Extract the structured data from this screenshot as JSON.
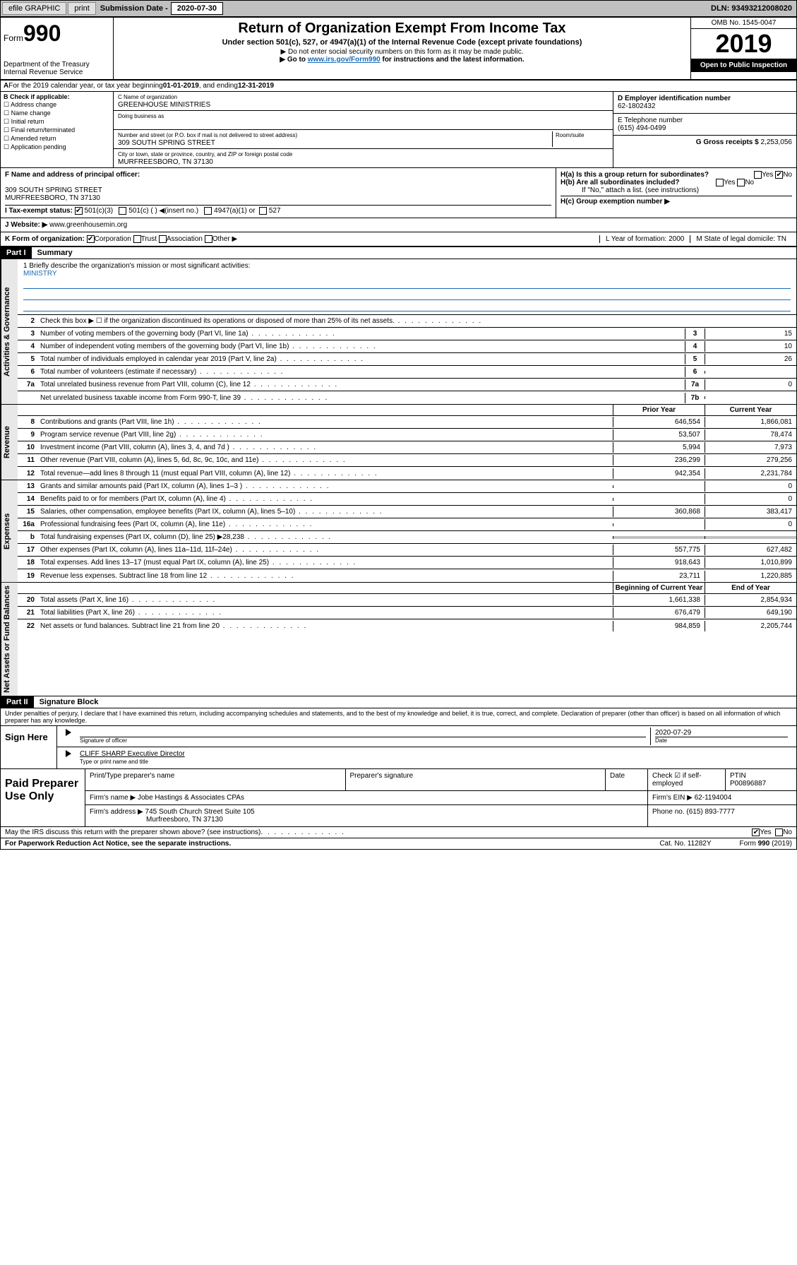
{
  "topbar": {
    "efile": "efile GRAPHIC",
    "print": "print",
    "subm_lbl": "Submission Date - ",
    "subm_date": "2020-07-30",
    "dln": "DLN: 93493212008020"
  },
  "header": {
    "form": "Form",
    "num": "990",
    "dept": "Department of the Treasury",
    "irs": "Internal Revenue Service",
    "title": "Return of Organization Exempt From Income Tax",
    "sub1": "Under section 501(c), 527, or 4947(a)(1) of the Internal Revenue Code (except private foundations)",
    "sub2": "▶ Do not enter social security numbers on this form as it may be made public.",
    "sub3": "▶ Go to www.irs.gov/Form990 for instructions and the latest information.",
    "omb": "OMB No. 1545-0047",
    "year": "2019",
    "public": "Open to Public Inspection"
  },
  "a": {
    "text": "For the 2019 calendar year, or tax year beginning ",
    "begin": "01-01-2019",
    "mid": " , and ending ",
    "end": "12-31-2019"
  },
  "b": {
    "lbl": "B Check if applicable:",
    "opts": [
      "Address change",
      "Name change",
      "Initial return",
      "Final return/terminated",
      "Amended return",
      "Application pending"
    ]
  },
  "c": {
    "name_lbl": "C Name of organization",
    "name": "GREENHOUSE MINISTRIES",
    "dba": "Doing business as",
    "addr_lbl": "Number and street (or P.O. box if mail is not delivered to street address)",
    "room": "Room/suite",
    "addr": "309 SOUTH SPRING STREET",
    "city_lbl": "City or town, state or province, country, and ZIP or foreign postal code",
    "city": "MURFREESBORO, TN  37130"
  },
  "d": {
    "lbl": "D Employer identification number",
    "val": "62-1802432"
  },
  "e": {
    "lbl": "E Telephone number",
    "val": "(615) 494-0499"
  },
  "g": {
    "lbl": "G Gross receipts $ ",
    "val": "2,253,056"
  },
  "f": {
    "lbl": "F Name and address of principal officer:",
    "addr1": "309 SOUTH SPRING STREET",
    "addr2": "MURFREESBORO, TN  37130"
  },
  "h": {
    "a": "H(a)  Is this a group return for subordinates?",
    "b": "H(b)  Are all subordinates included?",
    "note": "If \"No,\" attach a list. (see instructions)",
    "c": "H(c)  Group exemption number ▶"
  },
  "i": {
    "lbl": "I  Tax-exempt status:",
    "o1": "501(c)(3)",
    "o2": "501(c) (   ) ◀(insert no.)",
    "o3": "4947(a)(1) or",
    "o4": "527"
  },
  "j": {
    "lbl": "J  Website: ▶",
    "val": "www.greenhousemin.org"
  },
  "k": {
    "lbl": "K Form of organization:",
    "o1": "Corporation",
    "o2": "Trust",
    "o3": "Association",
    "o4": "Other ▶",
    "l": "L Year of formation: 2000",
    "m": "M State of legal domicile: TN"
  },
  "part1": {
    "hdr": "Part I",
    "title": "Summary"
  },
  "mission": {
    "lbl": "1  Briefly describe the organization's mission or most significant activities:",
    "val": "MINISTRY"
  },
  "gov_lines": [
    {
      "n": "2",
      "t": "Check this box ▶ ☐  if the organization discontinued its operations or disposed of more than 25% of its net assets."
    },
    {
      "n": "3",
      "t": "Number of voting members of the governing body (Part VI, line 1a)",
      "box": "3",
      "v": "15"
    },
    {
      "n": "4",
      "t": "Number of independent voting members of the governing body (Part VI, line 1b)",
      "box": "4",
      "v": "10"
    },
    {
      "n": "5",
      "t": "Total number of individuals employed in calendar year 2019 (Part V, line 2a)",
      "box": "5",
      "v": "26"
    },
    {
      "n": "6",
      "t": "Total number of volunteers (estimate if necessary)",
      "box": "6",
      "v": ""
    },
    {
      "n": "7a",
      "t": "Total unrelated business revenue from Part VIII, column (C), line 12",
      "box": "7a",
      "v": "0"
    },
    {
      "n": "",
      "t": "Net unrelated business taxable income from Form 990-T, line 39",
      "box": "7b",
      "v": ""
    }
  ],
  "col_hdrs": {
    "prior": "Prior Year",
    "current": "Current Year"
  },
  "rev_lines": [
    {
      "n": "8",
      "t": "Contributions and grants (Part VIII, line 1h)",
      "p": "646,554",
      "c": "1,866,081"
    },
    {
      "n": "9",
      "t": "Program service revenue (Part VIII, line 2g)",
      "p": "53,507",
      "c": "78,474"
    },
    {
      "n": "10",
      "t": "Investment income (Part VIII, column (A), lines 3, 4, and 7d )",
      "p": "5,994",
      "c": "7,973"
    },
    {
      "n": "11",
      "t": "Other revenue (Part VIII, column (A), lines 5, 6d, 8c, 9c, 10c, and 11e)",
      "p": "236,299",
      "c": "279,256"
    },
    {
      "n": "12",
      "t": "Total revenue—add lines 8 through 11 (must equal Part VIII, column (A), line 12)",
      "p": "942,354",
      "c": "2,231,784"
    }
  ],
  "exp_lines": [
    {
      "n": "13",
      "t": "Grants and similar amounts paid (Part IX, column (A), lines 1–3 )",
      "p": "",
      "c": "0"
    },
    {
      "n": "14",
      "t": "Benefits paid to or for members (Part IX, column (A), line 4)",
      "p": "",
      "c": "0"
    },
    {
      "n": "15",
      "t": "Salaries, other compensation, employee benefits (Part IX, column (A), lines 5–10)",
      "p": "360,868",
      "c": "383,417"
    },
    {
      "n": "16a",
      "t": "Professional fundraising fees (Part IX, column (A), line 11e)",
      "p": "",
      "c": "0"
    },
    {
      "n": "b",
      "t": "Total fundraising expenses (Part IX, column (D), line 25) ▶28,238",
      "p": "grey",
      "c": "grey"
    },
    {
      "n": "17",
      "t": "Other expenses (Part IX, column (A), lines 11a–11d, 11f–24e)",
      "p": "557,775",
      "c": "627,482"
    },
    {
      "n": "18",
      "t": "Total expenses. Add lines 13–17 (must equal Part IX, column (A), line 25)",
      "p": "918,643",
      "c": "1,010,899"
    },
    {
      "n": "19",
      "t": "Revenue less expenses. Subtract line 18 from line 12",
      "p": "23,711",
      "c": "1,220,885"
    }
  ],
  "col_hdrs2": {
    "prior": "Beginning of Current Year",
    "current": "End of Year"
  },
  "net_lines": [
    {
      "n": "20",
      "t": "Total assets (Part X, line 16)",
      "p": "1,661,338",
      "c": "2,854,934"
    },
    {
      "n": "21",
      "t": "Total liabilities (Part X, line 26)",
      "p": "676,479",
      "c": "649,190"
    },
    {
      "n": "22",
      "t": "Net assets or fund balances. Subtract line 21 from line 20",
      "p": "984,859",
      "c": "2,205,744"
    }
  ],
  "vtabs": {
    "gov": "Activities & Governance",
    "rev": "Revenue",
    "exp": "Expenses",
    "net": "Net Assets or Fund Balances"
  },
  "part2": {
    "hdr": "Part II",
    "title": "Signature Block"
  },
  "perjury": "Under penalties of perjury, I declare that I have examined this return, including accompanying schedules and statements, and to the best of my knowledge and belief, it is true, correct, and complete. Declaration of preparer (other than officer) is based on all information of which preparer has any knowledge.",
  "sign": {
    "here": "Sign Here",
    "sig_lbl": "Signature of officer",
    "date": "2020-07-29",
    "date_lbl": "Date",
    "name": "CLIFF SHARP  Executive Director",
    "name_lbl": "Type or print name and title"
  },
  "paid": {
    "lbl": "Paid Preparer Use Only",
    "c1": "Print/Type preparer's name",
    "c2": "Preparer's signature",
    "c3": "Date",
    "c4": "Check ☑ if self-employed",
    "c5": "PTIN",
    "ptin": "P00896887",
    "firm_lbl": "Firm's name  ▶",
    "firm": "Jobe Hastings & Associates CPAs",
    "ein_lbl": "Firm's EIN ▶",
    "ein": "62-1194004",
    "addr_lbl": "Firm's address ▶",
    "addr": "745 South Church Street Suite 105",
    "addr2": "Murfreesboro, TN  37130",
    "phone_lbl": "Phone no.",
    "phone": "(615) 893-7777"
  },
  "discuss": "May the IRS discuss this return with the preparer shown above? (see instructions)",
  "footer": {
    "l": "For Paperwork Reduction Act Notice, see the separate instructions.",
    "m": "Cat. No. 11282Y",
    "r": "Form 990 (2019)"
  }
}
